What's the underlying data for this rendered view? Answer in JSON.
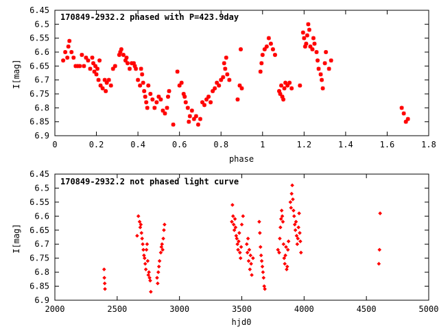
{
  "chart_data": [
    {
      "type": "scatter",
      "title": "170849-2932.2 phased with P=423.9day",
      "xlabel": "phase",
      "ylabel": "I[mag]",
      "xlim": [
        0,
        1.8
      ],
      "ylim": [
        6.45,
        6.9
      ],
      "y_inverted": true,
      "grid": false,
      "marker": "asterisk",
      "color": "#ff0000",
      "xticks": [
        "0",
        "0.2",
        "0.4",
        "0.6",
        "0.8",
        "1",
        "1.2",
        "1.4",
        "1.6",
        "1.8"
      ],
      "xtick_values": [
        0,
        0.2,
        0.4,
        0.6,
        0.8,
        1.0,
        1.2,
        1.4,
        1.6,
        1.8
      ],
      "yticks": [
        "6.45",
        "6.5",
        "6.55",
        "6.6",
        "6.65",
        "6.7",
        "6.75",
        "6.8",
        "6.85",
        "6.9"
      ],
      "ytick_values": [
        6.45,
        6.5,
        6.55,
        6.6,
        6.65,
        6.7,
        6.75,
        6.8,
        6.85,
        6.9
      ],
      "points": [
        [
          0.04,
          6.63
        ],
        [
          0.05,
          6.6
        ],
        [
          0.06,
          6.62
        ],
        [
          0.065,
          6.58
        ],
        [
          0.07,
          6.56
        ],
        [
          0.08,
          6.6
        ],
        [
          0.09,
          6.62
        ],
        [
          0.1,
          6.65
        ],
        [
          0.11,
          6.65
        ],
        [
          0.12,
          6.65
        ],
        [
          0.13,
          6.61
        ],
        [
          0.14,
          6.65
        ],
        [
          0.15,
          6.62
        ],
        [
          0.16,
          6.63
        ],
        [
          0.17,
          6.66
        ],
        [
          0.18,
          6.62
        ],
        [
          0.185,
          6.64
        ],
        [
          0.19,
          6.67
        ],
        [
          0.195,
          6.65
        ],
        [
          0.2,
          6.68
        ],
        [
          0.205,
          6.66
        ],
        [
          0.21,
          6.7
        ],
        [
          0.215,
          6.63
        ],
        [
          0.22,
          6.72
        ],
        [
          0.23,
          6.73
        ],
        [
          0.24,
          6.7
        ],
        [
          0.245,
          6.74
        ],
        [
          0.25,
          6.71
        ],
        [
          0.26,
          6.7
        ],
        [
          0.27,
          6.72
        ],
        [
          0.28,
          6.66
        ],
        [
          0.29,
          6.65
        ],
        [
          0.31,
          6.61
        ],
        [
          0.315,
          6.6
        ],
        [
          0.32,
          6.59
        ],
        [
          0.33,
          6.61
        ],
        [
          0.34,
          6.63
        ],
        [
          0.345,
          6.62
        ],
        [
          0.35,
          6.64
        ],
        [
          0.36,
          6.66
        ],
        [
          0.37,
          6.64
        ],
        [
          0.38,
          6.64
        ],
        [
          0.385,
          6.65
        ],
        [
          0.39,
          6.66
        ],
        [
          0.4,
          6.7
        ],
        [
          0.41,
          6.72
        ],
        [
          0.415,
          6.66
        ],
        [
          0.42,
          6.68
        ],
        [
          0.425,
          6.71
        ],
        [
          0.43,
          6.74
        ],
        [
          0.435,
          6.76
        ],
        [
          0.44,
          6.78
        ],
        [
          0.445,
          6.8
        ],
        [
          0.45,
          6.72
        ],
        [
          0.46,
          6.75
        ],
        [
          0.47,
          6.77
        ],
        [
          0.48,
          6.8
        ],
        [
          0.49,
          6.78
        ],
        [
          0.5,
          6.76
        ],
        [
          0.51,
          6.77
        ],
        [
          0.52,
          6.81
        ],
        [
          0.53,
          6.82
        ],
        [
          0.54,
          6.8
        ],
        [
          0.545,
          6.76
        ],
        [
          0.55,
          6.74
        ],
        [
          0.57,
          6.86
        ],
        [
          0.59,
          6.67
        ],
        [
          0.6,
          6.72
        ],
        [
          0.61,
          6.71
        ],
        [
          0.62,
          6.75
        ],
        [
          0.625,
          6.76
        ],
        [
          0.63,
          6.78
        ],
        [
          0.64,
          6.8
        ],
        [
          0.645,
          6.85
        ],
        [
          0.65,
          6.83
        ],
        [
          0.66,
          6.81
        ],
        [
          0.67,
          6.84
        ],
        [
          0.68,
          6.83
        ],
        [
          0.69,
          6.86
        ],
        [
          0.7,
          6.84
        ],
        [
          0.71,
          6.78
        ],
        [
          0.72,
          6.79
        ],
        [
          0.73,
          6.77
        ],
        [
          0.74,
          6.76
        ],
        [
          0.75,
          6.78
        ],
        [
          0.76,
          6.74
        ],
        [
          0.77,
          6.73
        ],
        [
          0.78,
          6.71
        ],
        [
          0.79,
          6.72
        ],
        [
          0.8,
          6.7
        ],
        [
          0.81,
          6.69
        ],
        [
          0.815,
          6.64
        ],
        [
          0.82,
          6.66
        ],
        [
          0.825,
          6.62
        ],
        [
          0.83,
          6.68
        ],
        [
          0.84,
          6.7
        ],
        [
          0.88,
          6.77
        ],
        [
          0.89,
          6.72
        ],
        [
          0.895,
          6.59
        ],
        [
          0.9,
          6.73
        ],
        [
          0.99,
          6.67
        ],
        [
          0.995,
          6.64
        ],
        [
          1.0,
          6.61
        ],
        [
          1.01,
          6.59
        ],
        [
          1.02,
          6.58
        ],
        [
          1.03,
          6.55
        ],
        [
          1.04,
          6.57
        ],
        [
          1.05,
          6.59
        ],
        [
          1.06,
          6.61
        ],
        [
          1.08,
          6.74
        ],
        [
          1.085,
          6.75
        ],
        [
          1.09,
          6.72
        ],
        [
          1.095,
          6.76
        ],
        [
          1.1,
          6.77
        ],
        [
          1.105,
          6.73
        ],
        [
          1.11,
          6.71
        ],
        [
          1.12,
          6.72
        ],
        [
          1.13,
          6.71
        ],
        [
          1.14,
          6.73
        ],
        [
          1.18,
          6.72
        ],
        [
          1.195,
          6.53
        ],
        [
          1.2,
          6.55
        ],
        [
          1.205,
          6.58
        ],
        [
          1.21,
          6.57
        ],
        [
          1.215,
          6.54
        ],
        [
          1.22,
          6.5
        ],
        [
          1.225,
          6.52
        ],
        [
          1.23,
          6.58
        ],
        [
          1.24,
          6.59
        ],
        [
          1.245,
          6.55
        ],
        [
          1.25,
          6.57
        ],
        [
          1.26,
          6.6
        ],
        [
          1.265,
          6.63
        ],
        [
          1.27,
          6.66
        ],
        [
          1.28,
          6.68
        ],
        [
          1.285,
          6.7
        ],
        [
          1.29,
          6.73
        ],
        [
          1.3,
          6.64
        ],
        [
          1.305,
          6.6
        ],
        [
          1.32,
          6.66
        ],
        [
          1.33,
          6.63
        ],
        [
          1.67,
          6.8
        ],
        [
          1.68,
          6.82
        ],
        [
          1.69,
          6.85
        ],
        [
          1.7,
          6.84
        ]
      ]
    },
    {
      "type": "scatter",
      "title": "170849-2932.2 not phased light curve",
      "xlabel": "hjd0",
      "ylabel": "I[mag]",
      "xlim": [
        2000,
        5000
      ],
      "ylim": [
        6.45,
        6.9
      ],
      "y_inverted": true,
      "grid": false,
      "marker": "diamond",
      "color": "#ff0000",
      "xticks": [
        "2000",
        "2500",
        "3000",
        "3500",
        "4000",
        "4500",
        "5000"
      ],
      "xtick_values": [
        2000,
        2500,
        3000,
        3500,
        4000,
        4500,
        5000
      ],
      "yticks": [
        "6.45",
        "6.5",
        "6.55",
        "6.6",
        "6.65",
        "6.7",
        "6.75",
        "6.8",
        "6.85",
        "6.9"
      ],
      "ytick_values": [
        6.45,
        6.5,
        6.55,
        6.6,
        6.65,
        6.7,
        6.75,
        6.8,
        6.85,
        6.9
      ],
      "points": [
        [
          2395,
          6.79
        ],
        [
          2397,
          6.82
        ],
        [
          2400,
          6.84
        ],
        [
          2402,
          6.86
        ],
        [
          2660,
          6.67
        ],
        [
          2670,
          6.6
        ],
        [
          2680,
          6.62
        ],
        [
          2685,
          6.64
        ],
        [
          2690,
          6.63
        ],
        [
          2695,
          6.66
        ],
        [
          2700,
          6.68
        ],
        [
          2705,
          6.7
        ],
        [
          2710,
          6.72
        ],
        [
          2715,
          6.74
        ],
        [
          2720,
          6.75
        ],
        [
          2725,
          6.77
        ],
        [
          2730,
          6.79
        ],
        [
          2735,
          6.72
        ],
        [
          2740,
          6.7
        ],
        [
          2745,
          6.76
        ],
        [
          2750,
          6.81
        ],
        [
          2755,
          6.8
        ],
        [
          2760,
          6.82
        ],
        [
          2765,
          6.83
        ],
        [
          2770,
          6.87
        ],
        [
          2820,
          6.82
        ],
        [
          2825,
          6.84
        ],
        [
          2830,
          6.8
        ],
        [
          2835,
          6.78
        ],
        [
          2840,
          6.76
        ],
        [
          2850,
          6.73
        ],
        [
          2855,
          6.71
        ],
        [
          2860,
          6.7
        ],
        [
          2865,
          6.72
        ],
        [
          2870,
          6.68
        ],
        [
          2875,
          6.65
        ],
        [
          2880,
          6.63
        ],
        [
          3420,
          6.62
        ],
        [
          3425,
          6.56
        ],
        [
          3430,
          6.6
        ],
        [
          3435,
          6.63
        ],
        [
          3440,
          6.65
        ],
        [
          3445,
          6.61
        ],
        [
          3450,
          6.64
        ],
        [
          3455,
          6.67
        ],
        [
          3460,
          6.68
        ],
        [
          3465,
          6.7
        ],
        [
          3470,
          6.72
        ],
        [
          3475,
          6.69
        ],
        [
          3480,
          6.66
        ],
        [
          3485,
          6.73
        ],
        [
          3490,
          6.75
        ],
        [
          3495,
          6.71
        ],
        [
          3500,
          6.63
        ],
        [
          3510,
          6.6
        ],
        [
          3540,
          6.7
        ],
        [
          3545,
          6.73
        ],
        [
          3550,
          6.68
        ],
        [
          3555,
          6.76
        ],
        [
          3560,
          6.72
        ],
        [
          3565,
          6.79
        ],
        [
          3570,
          6.74
        ],
        [
          3575,
          6.77
        ],
        [
          3580,
          6.81
        ],
        [
          3590,
          6.75
        ],
        [
          3640,
          6.62
        ],
        [
          3645,
          6.66
        ],
        [
          3650,
          6.71
        ],
        [
          3655,
          6.74
        ],
        [
          3660,
          6.76
        ],
        [
          3665,
          6.78
        ],
        [
          3670,
          6.8
        ],
        [
          3675,
          6.82
        ],
        [
          3680,
          6.85
        ],
        [
          3685,
          6.86
        ],
        [
          3790,
          6.72
        ],
        [
          3800,
          6.73
        ],
        [
          3805,
          6.68
        ],
        [
          3810,
          6.64
        ],
        [
          3815,
          6.61
        ],
        [
          3820,
          6.58
        ],
        [
          3825,
          6.6
        ],
        [
          3830,
          6.62
        ],
        [
          3835,
          6.7
        ],
        [
          3840,
          6.75
        ],
        [
          3845,
          6.77
        ],
        [
          3850,
          6.74
        ],
        [
          3855,
          6.71
        ],
        [
          3860,
          6.79
        ],
        [
          3865,
          6.78
        ],
        [
          3870,
          6.72
        ],
        [
          3875,
          6.69
        ],
        [
          3890,
          6.55
        ],
        [
          3895,
          6.57
        ],
        [
          3900,
          6.52
        ],
        [
          3905,
          6.49
        ],
        [
          3910,
          6.54
        ],
        [
          3915,
          6.58
        ],
        [
          3920,
          6.6
        ],
        [
          3925,
          6.63
        ],
        [
          3930,
          6.65
        ],
        [
          3935,
          6.62
        ],
        [
          3940,
          6.67
        ],
        [
          3945,
          6.7
        ],
        [
          3950,
          6.68
        ],
        [
          3955,
          6.64
        ],
        [
          3960,
          6.59
        ],
        [
          3965,
          6.66
        ],
        [
          3970,
          6.69
        ],
        [
          3975,
          6.73
        ],
        [
          4600,
          6.77
        ],
        [
          4605,
          6.72
        ],
        [
          4610,
          6.59
        ]
      ]
    }
  ]
}
